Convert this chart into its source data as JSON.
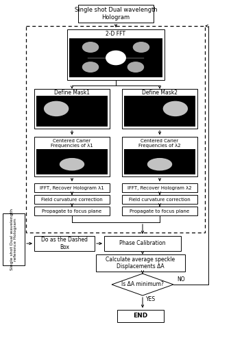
{
  "title": "Single shot Dual wavelength\nHologram",
  "fft_label": "2-D FFT",
  "mask1_label": "Define Mask1",
  "mask2_label": "Define Mask2",
  "centered1_label": "Centered Carier\nFrequencies of λ1",
  "centered2_label": "Centered Carier\nFrequencies of λ2",
  "ifft1_label": "IFFT, Recover Hologram λ1",
  "ifft2_label": "IFFT, Recover Hologram λ2",
  "field1_label": "Field curvature correction",
  "field2_label": "Field curvature correction",
  "prop1_label": "Propagate to focus plane",
  "prop2_label": "Propagate to focus plane",
  "dashed_label": "Do as the Dashed\nBox",
  "phase_label": "Phase Calibration",
  "calc_label": "Calculate average speckle\nDisplacements ΔA",
  "diamond_label": "Is ΔA minimum?",
  "yes_label": "YES",
  "no_label": "NO",
  "end_label": "END",
  "side_label": "Single shot Dual wavelength\nreference Hologram",
  "bg_color": "#ffffff"
}
